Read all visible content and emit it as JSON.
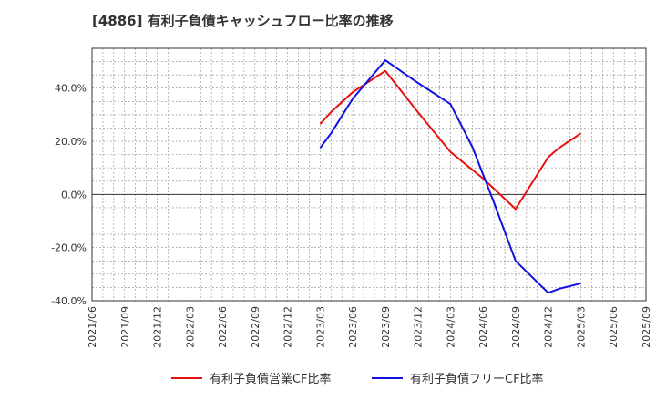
{
  "chart_data": {
    "type": "line",
    "title": "[4886]  有利子負債キャッシュフロー比率の推移",
    "x": [
      "2021/06",
      "2021/09",
      "2021/12",
      "2022/03",
      "2022/06",
      "2022/09",
      "2022/12",
      "2023/03",
      "2023/06",
      "2023/09",
      "2023/12",
      "2024/03",
      "2024/06",
      "2024/09",
      "2024/12",
      "2025/03",
      "2025/06",
      "2025/09"
    ],
    "ylim": [
      -40,
      55
    ],
    "yticks": [
      -40,
      -20,
      0,
      20,
      40
    ],
    "ytick_labels": [
      "-40.0%",
      "-20.0%",
      "0.0%",
      "20.0%",
      "40.0%"
    ],
    "grid": true,
    "legend_position": "bottom",
    "series": [
      {
        "name": "有利子負債営業CF比率",
        "color": "#e8100f",
        "points": [
          {
            "x": "2023/03",
            "y": 26.5
          },
          {
            "x": "2023/04",
            "y": 31.0
          },
          {
            "x": "2023/06",
            "y": 38.5
          },
          {
            "x": "2023/09",
            "y": 46.5
          },
          {
            "x": "2023/12",
            "y": 31.0
          },
          {
            "x": "2024/03",
            "y": 16.0
          },
          {
            "x": "2024/06",
            "y": 6.0
          },
          {
            "x": "2024/09",
            "y": -5.5
          },
          {
            "x": "2024/12",
            "y": 14.0
          },
          {
            "x": "2025/01",
            "y": 17.5
          },
          {
            "x": "2025/03",
            "y": 23.0
          }
        ]
      },
      {
        "name": "有利子負債フリーCF比率",
        "color": "#1010e0",
        "points": [
          {
            "x": "2023/03",
            "y": 17.5
          },
          {
            "x": "2023/04",
            "y": 23.0
          },
          {
            "x": "2023/06",
            "y": 36.0
          },
          {
            "x": "2023/09",
            "y": 50.5
          },
          {
            "x": "2023/12",
            "y": 42.0
          },
          {
            "x": "2024/03",
            "y": 34.0
          },
          {
            "x": "2024/05",
            "y": 18.0
          },
          {
            "x": "2024/07",
            "y": -3.0
          },
          {
            "x": "2024/09",
            "y": -25.0
          },
          {
            "x": "2024/12",
            "y": -37.0
          },
          {
            "x": "2025/01",
            "y": -35.5
          },
          {
            "x": "2025/03",
            "y": -33.5
          }
        ]
      }
    ]
  }
}
